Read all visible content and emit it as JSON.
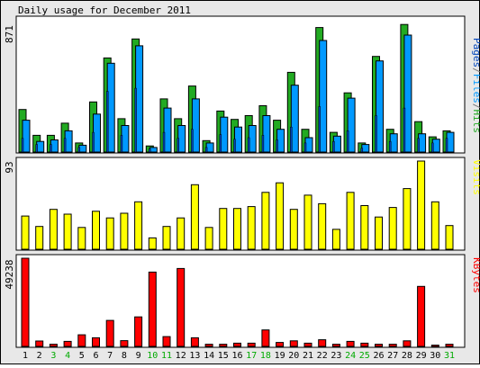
{
  "chart_data": {
    "type": "bar",
    "title": "Daily usage for December 2011",
    "categories": [
      "1",
      "2",
      "3",
      "4",
      "5",
      "6",
      "7",
      "8",
      "9",
      "10",
      "11",
      "12",
      "13",
      "14",
      "15",
      "16",
      "17",
      "18",
      "19",
      "20",
      "21",
      "22",
      "23",
      "24",
      "25",
      "26",
      "27",
      "28",
      "29",
      "30",
      "31"
    ],
    "weekend_days": [
      3,
      4,
      10,
      11,
      17,
      18,
      24,
      25,
      31
    ],
    "colors": {
      "hits": "#22aa22",
      "files": "#0099ff",
      "pages": "#0044bb",
      "visits": "#ffff00",
      "kbytes": "#ff0000",
      "weekday_label": "#000000",
      "weekend_label": "#00aa00",
      "border": "#000000",
      "panel_bg": "#ffffff",
      "frame_bg": "#e8e8e8"
    },
    "panels": [
      {
        "id": "top",
        "ymax_label": "871",
        "ymax": 871,
        "side_label": {
          "parts": [
            {
              "text": "Pages",
              "color": "#0044bb"
            },
            {
              "text": "/",
              "color": "#777777"
            },
            {
              "text": "Files",
              "color": "#0099ff"
            },
            {
              "text": "/",
              "color": "#777777"
            },
            {
              "text": "Hits",
              "color": "#22aa22"
            }
          ]
        },
        "series": [
          {
            "key": "hits",
            "values": [
              280,
              110,
              110,
              190,
              60,
              330,
              620,
              220,
              745,
              40,
              350,
              220,
              435,
              75,
              270,
              215,
              240,
              305,
              210,
              525,
              150,
              820,
              130,
              390,
              60,
              630,
              150,
              840,
              200,
              100,
              140
            ]
          },
          {
            "key": "files",
            "values": [
              210,
              70,
              80,
              140,
              45,
              250,
              585,
              175,
              700,
              30,
              290,
              175,
              350,
              60,
              230,
              165,
              175,
              240,
              150,
              440,
              95,
              735,
              105,
              355,
              50,
              600,
              120,
              770,
              120,
              85,
              130
            ]
          },
          {
            "key": "pages",
            "values": [
              90,
              50,
              50,
              90,
              30,
              130,
              400,
              110,
              420,
              20,
              130,
              90,
              150,
              30,
              115,
              85,
              95,
              110,
              80,
              165,
              60,
              300,
              70,
              140,
              25,
              240,
              70,
              290,
              90,
              60,
              90
            ]
          }
        ]
      },
      {
        "id": "mid",
        "ymax_label": "93",
        "ymax": 93,
        "side_label": {
          "parts": [
            {
              "text": "Visits",
              "color": "#ffff00"
            }
          ]
        },
        "series": [
          {
            "key": "visits",
            "values": [
              35,
              24,
              42,
              37,
              23,
              40,
              33,
              38,
              50,
              12,
              24,
              33,
              68,
              23,
              43,
              43,
              45,
              60,
              70,
              42,
              57,
              48,
              21,
              60,
              46,
              34,
              44,
              64,
              93,
              50,
              25
            ]
          }
        ]
      },
      {
        "id": "bot",
        "ymax_label": "49238",
        "ymax": 49238,
        "side_label": {
          "parts": [
            {
              "text": "KBytes",
              "color": "#ff0000"
            }
          ]
        },
        "series": [
          {
            "key": "kbytes",
            "values": [
              49238,
              3000,
              1200,
              2800,
              6500,
              4800,
              14500,
              3200,
              16500,
              41500,
              5500,
              43500,
              4800,
              1200,
              1200,
              1800,
              1800,
              9200,
              2200,
              3100,
              1800,
              3700,
              1200,
              2800,
              1800,
              1200,
              1200,
              3100,
              33500,
              700,
              1200
            ]
          }
        ]
      }
    ]
  }
}
